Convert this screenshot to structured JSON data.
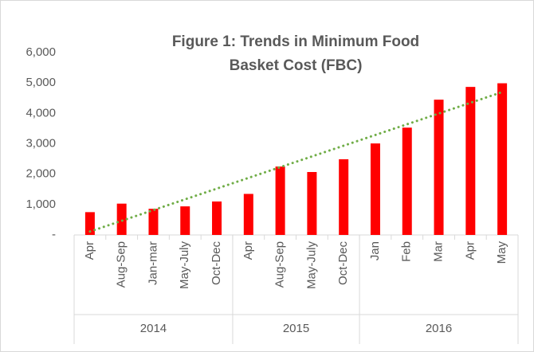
{
  "chart_data": {
    "type": "bar",
    "title": "Figure 1: Trends in Minimum Food Basket Cost (FBC)",
    "groups": [
      {
        "label": "2014",
        "categories": [
          "Apr",
          "Aug-Sep",
          "Jan-mar",
          "May-July",
          "Oct-Dec"
        ]
      },
      {
        "label": "2015",
        "categories": [
          "Apr",
          "Aug-Sep",
          "May-July",
          "Oct-Dec"
        ]
      },
      {
        "label": "2016",
        "categories": [
          "Jan",
          "Feb",
          "Mar",
          "Apr",
          "May"
        ]
      }
    ],
    "values": [
      750,
      1030,
      860,
      940,
      1100,
      1350,
      2250,
      2070,
      2490,
      3010,
      3530,
      4450,
      4870,
      4990
    ],
    "color": "#ff0000",
    "trendline": {
      "type": "linear",
      "color": "#70ad47"
    },
    "ylim": [
      0,
      6000
    ],
    "yticks": [
      {
        "value": 0,
        "label": "-"
      },
      {
        "value": 1000,
        "label": "1,000"
      },
      {
        "value": 2000,
        "label": "2,000"
      },
      {
        "value": 3000,
        "label": "3,000"
      },
      {
        "value": 4000,
        "label": "4,000"
      },
      {
        "value": 5000,
        "label": "5,000"
      },
      {
        "value": 6000,
        "label": "6,000"
      }
    ]
  }
}
